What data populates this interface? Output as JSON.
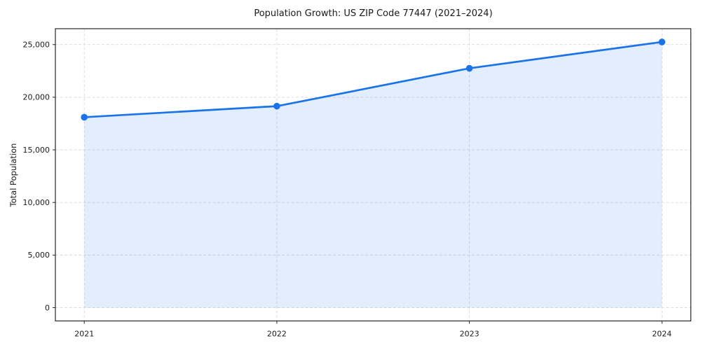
{
  "chart_data": {
    "type": "line",
    "title": "Population Growth: US ZIP Code 77447 (2021–2024)",
    "xlabel": "",
    "ylabel": "Total Population",
    "x": [
      2021,
      2022,
      2023,
      2024
    ],
    "series": [
      {
        "name": "Total Population",
        "values": [
          18100,
          19150,
          22750,
          25250
        ]
      }
    ],
    "x_tick_labels": [
      "2021",
      "2022",
      "2023",
      "2024"
    ],
    "y_ticks": [
      0,
      5000,
      10000,
      15000,
      20000,
      25000
    ],
    "y_tick_labels": [
      "0",
      "5,000",
      "10,000",
      "15,000",
      "20,000",
      "25,000"
    ],
    "xlim": [
      2020.85,
      2024.15
    ],
    "ylim": [
      -1262,
      26512
    ],
    "grid": true,
    "grid_style": "dashed",
    "legend": false,
    "area_fill": true,
    "area_baseline": 0,
    "colors": {
      "line": "#1a73e8",
      "marker": "#1a73e8",
      "fill": "rgba(26,115,232,0.12)",
      "grid": "#d9d9d9",
      "spine": "#262626",
      "text": "#1a1a1a",
      "background": "#ffffff"
    }
  }
}
